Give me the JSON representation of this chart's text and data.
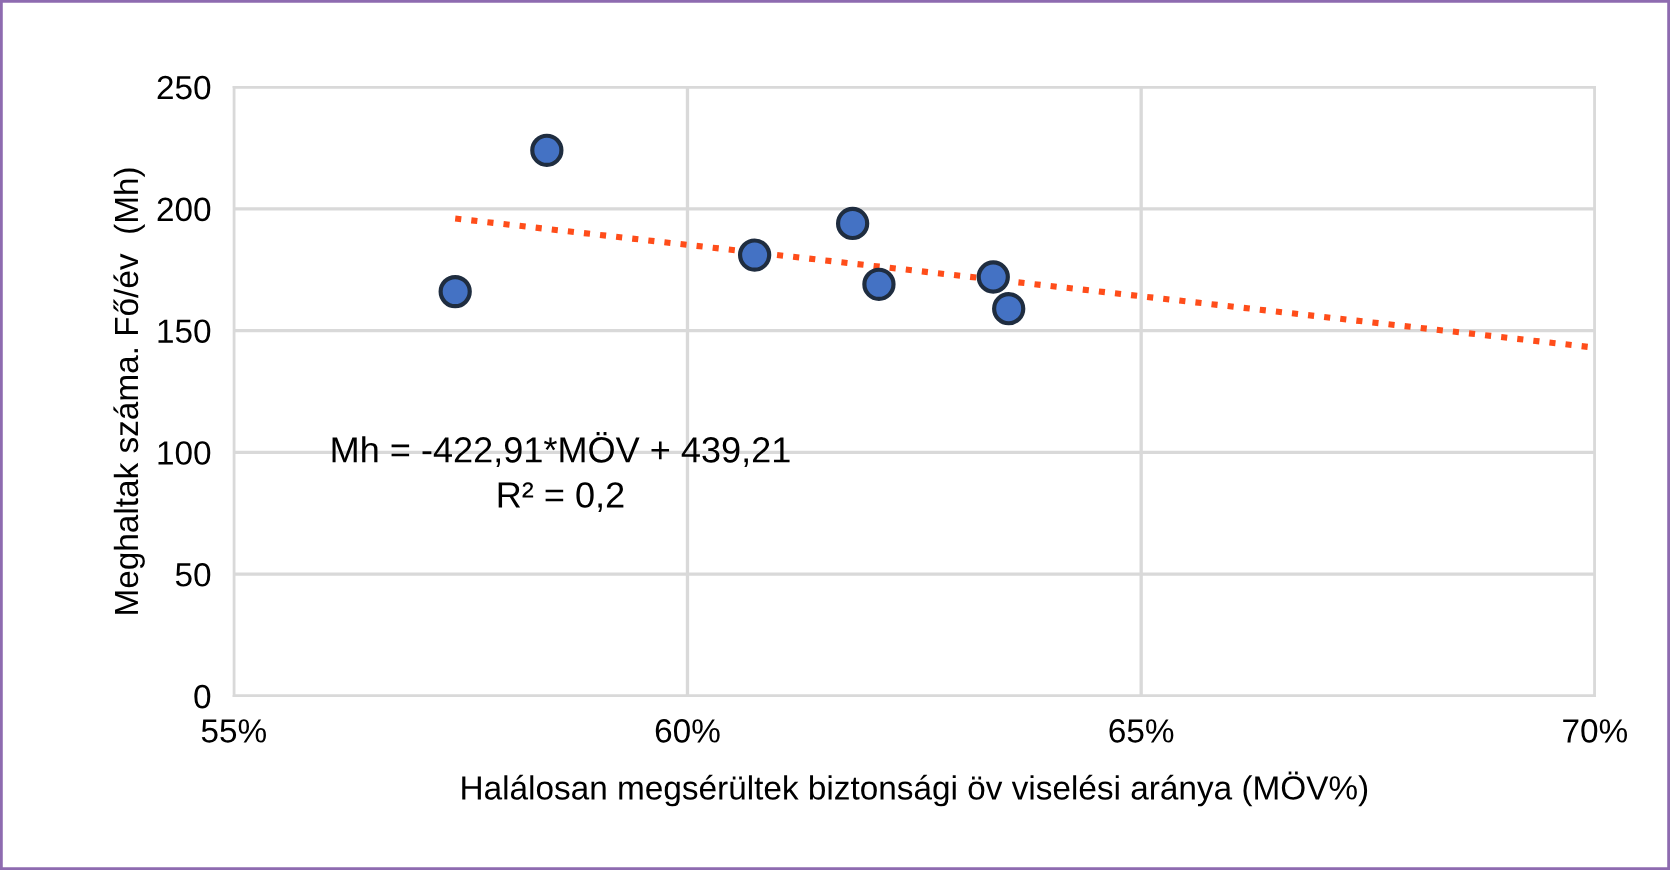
{
  "chart_data": {
    "type": "scatter",
    "xlabel": "Halálosan megsérültek biztonsági öv viselési aránya (MÖV%)",
    "ylabel": "Meghaltak száma. Fő/év  (Mh)",
    "series": [
      {
        "color": "#4472c4",
        "marker": "circle",
        "x": [
          57.44,
          58.45,
          60.74,
          61.82,
          62.11,
          63.37,
          63.54
        ],
        "values": [
          166,
          224,
          181,
          194,
          169,
          172,
          159
        ]
      },
      {
        "type": "line",
        "color": "#ff4d1a",
        "line_style": "dotted",
        "marker": "none",
        "x": [
          57.44,
          70
        ],
        "values": [
          196,
          143
        ]
      }
    ],
    "annotations": [
      "Mh = -422,91*MÖV + 439,21",
      "R² = 0,2"
    ],
    "xlim": [
      55,
      70
    ],
    "xticks": [
      {
        "value": 55,
        "label": "55%"
      },
      {
        "value": 60,
        "label": "60%"
      },
      {
        "value": 65,
        "label": "65%"
      },
      {
        "value": 70,
        "label": "70%"
      }
    ],
    "ylim": [
      0,
      250
    ],
    "yticks": [
      0,
      50,
      100,
      150,
      200,
      250
    ],
    "grid": true,
    "legend": false
  }
}
